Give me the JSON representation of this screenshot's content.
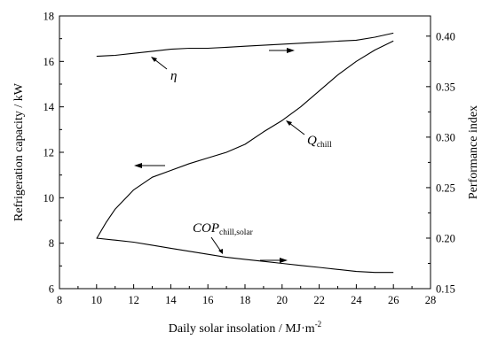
{
  "chart_data": {
    "type": "line",
    "xlabel_prefix": "Daily solar insolation / MJ·m",
    "xlabel_exp": "-2",
    "ylabel_left": "Refrigeration capacity / kW",
    "ylabel_right": "Performance index",
    "xlim": [
      8,
      28
    ],
    "ylim_left": [
      6,
      18
    ],
    "ylim_right": [
      0.15,
      0.42
    ],
    "x_ticks": [
      "8",
      "10",
      "12",
      "14",
      "16",
      "18",
      "20",
      "22",
      "24",
      "26",
      "28"
    ],
    "y_left_ticks": [
      "6",
      "8",
      "10",
      "12",
      "14",
      "16",
      "18"
    ],
    "y_right_ticks": [
      "0.15",
      "0.20",
      "0.25",
      "0.30",
      "0.35",
      "0.40"
    ],
    "grid": false,
    "series": [
      {
        "name": "η",
        "axis": "right",
        "x": [
          10,
          11,
          12,
          13,
          14,
          15,
          16,
          17,
          18,
          19,
          20,
          21,
          22,
          23,
          24,
          25,
          26
        ],
        "values": [
          0.38,
          0.381,
          0.383,
          0.385,
          0.387,
          0.388,
          0.388,
          0.389,
          0.39,
          0.391,
          0.392,
          0.393,
          0.394,
          0.395,
          0.396,
          0.399,
          0.403
        ]
      },
      {
        "name_main": "Q",
        "name_sub": "chill",
        "axis": "left",
        "x": [
          10,
          10.5,
          11,
          12,
          13,
          14,
          15,
          16,
          17,
          18,
          19,
          20,
          21,
          22,
          23,
          24,
          25,
          26
        ],
        "values": [
          8.2,
          8.9,
          9.5,
          10.35,
          10.9,
          11.2,
          11.5,
          11.75,
          12.0,
          12.35,
          12.9,
          13.4,
          14.0,
          14.7,
          15.4,
          16.0,
          16.5,
          16.9
        ]
      },
      {
        "name_main": "COP",
        "name_sub": "chill,solar",
        "axis": "right",
        "x": [
          10,
          11,
          12,
          13,
          14,
          15,
          16,
          17,
          18,
          19,
          20,
          21,
          22,
          23,
          24,
          25,
          26
        ],
        "values": [
          0.2,
          0.198,
          0.196,
          0.193,
          0.19,
          0.187,
          0.184,
          0.181,
          0.179,
          0.177,
          0.175,
          0.173,
          0.171,
          0.169,
          0.167,
          0.166,
          0.166
        ]
      }
    ]
  }
}
